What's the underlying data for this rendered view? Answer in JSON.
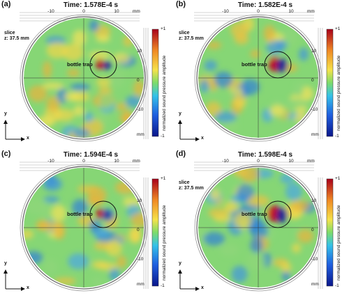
{
  "panels": [
    {
      "label": "(a)",
      "time": "Time: 1.578E-4 s",
      "slice": [
        "slice",
        "z: 37.5 mm"
      ],
      "strength": 0.55,
      "cbar_ticks": [
        "+1",
        "-1"
      ],
      "mm": "mm"
    },
    {
      "label": "(b)",
      "time": "Time: 1.582E-4 s",
      "slice": [
        "slice",
        "z: 37.5 mm"
      ],
      "strength": 0.9,
      "cbar_ticks": [
        "+1",
        "-1"
      ],
      "mm": "mm"
    },
    {
      "label": "(c)",
      "time": "Time: 1.594E-4 s",
      "slice": [],
      "strength": 0.5,
      "cbar_ticks": [
        "+1",
        "-1"
      ],
      "mm": "mm"
    },
    {
      "label": "(d)",
      "time": "Time: 1.598E-4 s",
      "slice": [
        "slice",
        "z: 37.5 mm"
      ],
      "strength": 1.0,
      "cbar_ticks": [
        "+1",
        "-1"
      ],
      "mm": "mm"
    }
  ],
  "top_ticks": [
    "-10",
    "0",
    "10"
  ],
  "right_ticks": [
    "10",
    "0",
    "-10"
  ],
  "trap_label": "bottle trap",
  "colorbar_title": "normalized sound pressure amplitude",
  "axis_x": "x",
  "axis_y": "y",
  "colors": {
    "low": "#0b1a8c",
    "mid": "#6fd46a",
    "high": "#b0001a"
  }
}
